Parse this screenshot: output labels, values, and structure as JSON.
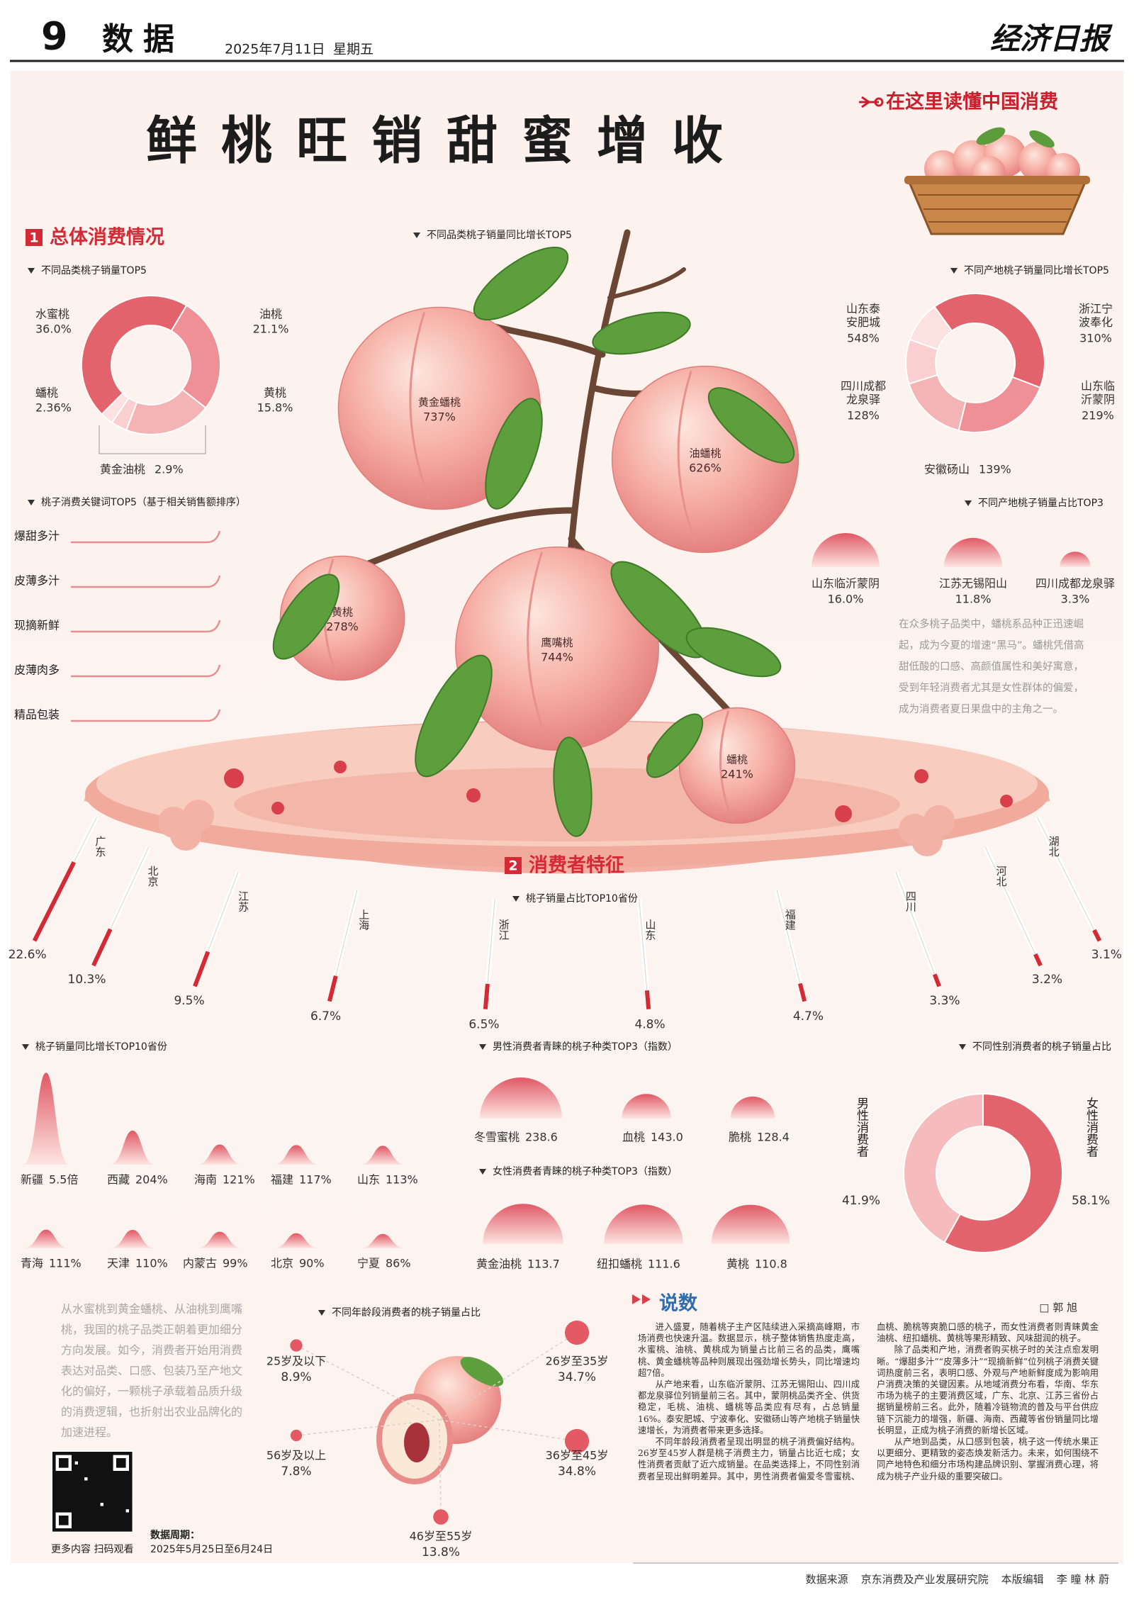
{
  "header": {
    "page": "9",
    "section": "数据",
    "date": "2025年7月11日",
    "weekday": "星期五",
    "paper": "经济日报"
  },
  "title": "鲜桃旺销甜蜜增收",
  "tagline": "在这里读懂中国消费",
  "section1": {
    "number": "1",
    "title": "总体消费情况"
  },
  "variety_share": {
    "title": "不同品类桃子销量TOP5",
    "items": [
      {
        "name": "水蜜桃",
        "value": 36.0,
        "label": "36.0%"
      },
      {
        "name": "油桃",
        "value": 21.1,
        "label": "21.1%"
      },
      {
        "name": "黄桃",
        "value": 15.8,
        "label": "15.8%"
      },
      {
        "name": "黄金油桃",
        "value": 2.9,
        "label": "2.9%"
      },
      {
        "name": "蟠桃",
        "value": 2.36,
        "label": "2.36%"
      }
    ]
  },
  "variety_growth": {
    "title": "不同品类桃子销量同比增长TOP5",
    "items": [
      {
        "name": "黄金蟠桃",
        "value": 737,
        "label": "737%"
      },
      {
        "name": "油蟠桃",
        "value": 626,
        "label": "626%"
      },
      {
        "name": "黄桃",
        "value": 278,
        "label": "278%"
      },
      {
        "name": "鹰嘴桃",
        "value": 744,
        "label": "744%"
      },
      {
        "name": "蟠桃",
        "value": 241,
        "label": "241%"
      }
    ]
  },
  "origin_growth": {
    "title": "不同产地桃子销量同比增长TOP5",
    "items": [
      {
        "name": "山东泰安肥城",
        "value": 548,
        "label": "548%"
      },
      {
        "name": "浙江宁波奉化",
        "value": 310,
        "label": "310%"
      },
      {
        "name": "山东临沂蒙阴",
        "value": 219,
        "label": "219%"
      },
      {
        "name": "安徽砀山",
        "value": 139,
        "label": "139%"
      },
      {
        "name": "四川成都龙泉驿",
        "value": 128,
        "label": "128%"
      }
    ]
  },
  "keywords": {
    "title": "桃子消费关键词TOP5（基于相关销售额排序）",
    "items": [
      "爆甜多汁",
      "皮薄多汁",
      "现摘新鲜",
      "皮薄肉多",
      "精品包装"
    ]
  },
  "origin_share": {
    "title": "不同产地桃子销量占比TOP3",
    "items": [
      {
        "name": "山东临沂蒙阴",
        "value": 16.0,
        "label": "16.0%"
      },
      {
        "name": "江苏无锡阳山",
        "value": 11.8,
        "label": "11.8%"
      },
      {
        "name": "四川成都龙泉驿",
        "value": 3.3,
        "label": "3.3%"
      }
    ]
  },
  "note": "在众多桃子品类中，蟠桃系品种正迅速崛起，成为今夏的增速“黑马”。蟠桃凭借高甜低酸的口感、高颜值属性和美好寓意，受到年轻消费者尤其是女性群体的偏爱，成为消费者夏日果盘中的主角之一。",
  "section2": {
    "number": "2",
    "title": "消费者特征"
  },
  "province_share": {
    "title": "桃子销量占比TOP10省份",
    "items": [
      {
        "name": "广东",
        "value": 22.6,
        "label": "22.6%"
      },
      {
        "name": "北京",
        "value": 10.3,
        "label": "10.3%"
      },
      {
        "name": "江苏",
        "value": 9.5,
        "label": "9.5%"
      },
      {
        "name": "上海",
        "value": 6.7,
        "label": "6.7%"
      },
      {
        "name": "浙江",
        "value": 6.5,
        "label": "6.5%"
      },
      {
        "name": "山东",
        "value": 4.8,
        "label": "4.8%"
      },
      {
        "name": "福建",
        "value": 4.7,
        "label": "4.7%"
      },
      {
        "name": "四川",
        "value": 3.3,
        "label": "3.3%"
      },
      {
        "name": "河北",
        "value": 3.2,
        "label": "3.2%"
      },
      {
        "name": "湖北",
        "value": 3.1,
        "label": "3.1%"
      }
    ]
  },
  "province_growth": {
    "title": "桃子销量同比增长TOP10省份",
    "items": [
      {
        "name": "新疆",
        "value": 550,
        "label": "5.5倍"
      },
      {
        "name": "西藏",
        "value": 204,
        "label": "204%"
      },
      {
        "name": "海南",
        "value": 121,
        "label": "121%"
      },
      {
        "name": "福建",
        "value": 117,
        "label": "117%"
      },
      {
        "name": "山东",
        "value": 113,
        "label": "113%"
      },
      {
        "name": "青海",
        "value": 111,
        "label": "111%"
      },
      {
        "name": "天津",
        "value": 110,
        "label": "110%"
      },
      {
        "name": "内蒙古",
        "value": 99,
        "label": "99%"
      },
      {
        "name": "北京",
        "value": 90,
        "label": "90%"
      },
      {
        "name": "宁夏",
        "value": 86,
        "label": "86%"
      }
    ]
  },
  "male_top3": {
    "title": "男性消费者青睐的桃子种类TOP3（指数）",
    "items": [
      {
        "name": "冬雪蜜桃",
        "value": 238.6
      },
      {
        "name": "血桃",
        "value": 143.0,
        "label": "143.0"
      },
      {
        "name": "脆桃",
        "value": 128.4
      }
    ]
  },
  "female_top3": {
    "title": "女性消费者青睐的桃子种类TOP3（指数）",
    "items": [
      {
        "name": "黄金油桃",
        "value": 113.7
      },
      {
        "name": "纽扣蟠桃",
        "value": 111.6
      },
      {
        "name": "黄桃",
        "value": 110.8
      }
    ]
  },
  "gender_share": {
    "title": "不同性别消费者的桃子销量占比",
    "items": [
      {
        "name": "男性消费者",
        "value": 41.9,
        "label": "41.9%"
      },
      {
        "name": "女性消费者",
        "value": 58.1,
        "label": "58.1%"
      }
    ]
  },
  "age_share": {
    "title": "不同年龄段消费者的桃子销量占比",
    "items": [
      {
        "name": "25岁及以下",
        "value": 8.9,
        "label": "8.9%"
      },
      {
        "name": "26岁至35岁",
        "value": 34.7,
        "label": "34.7%"
      },
      {
        "name": "36岁至45岁",
        "value": 34.8,
        "label": "34.8%"
      },
      {
        "name": "46岁至55岁",
        "value": 13.8,
        "label": "13.8%"
      },
      {
        "name": "56岁及以上",
        "value": 7.8,
        "label": "7.8%"
      }
    ]
  },
  "intro": "从水蜜桃到黄金蟠桃、从油桃到鹰嘴桃，我国的桃子品类正朝着更加细分方向发展。如今，消费者开始用消费表达对品类、口感、包装乃至产地文化的偏好，一颗桃子承载着品质升级的消费逻辑，也折射出农业品牌化的加速进程。",
  "qr_caption": "更多内容 扫码观看",
  "data_period": {
    "label": "数据周期：",
    "value": "2025年5月25日至6月24日"
  },
  "commentary": {
    "title": "说数",
    "author": "□ 郭 旭",
    "paragraphs": [
      "进入盛夏，随着桃子主产区陆续进入采摘高峰期，市场消费也快速升温。数据显示，桃子整体销售热度走高，水蜜桃、油桃、黄桃成为销量占比前三名的品类，鹰嘴桃、黄金蟠桃等品种则展现出强劲增长势头，同比增速均超7倍。",
      "从产地来看，山东临沂蒙阴、江苏无锡阳山、四川成都龙泉驿位列销量前三名。其中，蒙阴桃品类齐全、供货稳定，毛桃、油桃、蟠桃等品类应有尽有，占总销量16%。泰安肥城、宁波奉化、安徽砀山等产地桃子销量快速增长，为消费者带来更多选择。",
      "不同年龄段消费者呈现出明显的桃子消费偏好结构。26岁至45岁人群是桃子消费主力，销量占比近七成；女性消费者贡献了近六成销量。在品类选择上，不同性别消费者呈现出鲜明差异。其中，男性消费者偏爱冬雪蜜桃、血桃、脆桃等爽脆口感的桃子，而女性消费者则青睐黄金油桃、纽扣蟠桃、黄桃等果形精致、风味甜润的桃子。",
      "除了品类和产地，消费者购买桃子时的关注点愈发明晰。“爆甜多汁”“皮薄多汁”“现摘新鲜”位列桃子消费关键词热度前三名，表明口感、外观与产地新鲜度成为影响用户消费决策的关键因素。从地域消费分布看，华南、华东市场为桃子的主要消费区域，广东、北京、江苏三省份占据销量榜前三名。此外，随着冷链物流的普及与平台供应链下沉能力的增强，新疆、海南、西藏等省份销量同比增长明显，正成为桃子消费的新增长区域。",
      "从产地到品类，从口感到包装，桃子这一传统水果正以更细分、更精致的姿态焕发新活力。未来，如何围绕不同产地特色和细分市场构建品牌识别、掌握消费心理，将成为桃子产业升级的重要突破口。"
    ]
  },
  "footer": {
    "source_label": "数据来源",
    "source": "京东消费及产业发展研究院",
    "editor_label": "本版编辑",
    "editors": "李 瞳 林 蔚"
  }
}
